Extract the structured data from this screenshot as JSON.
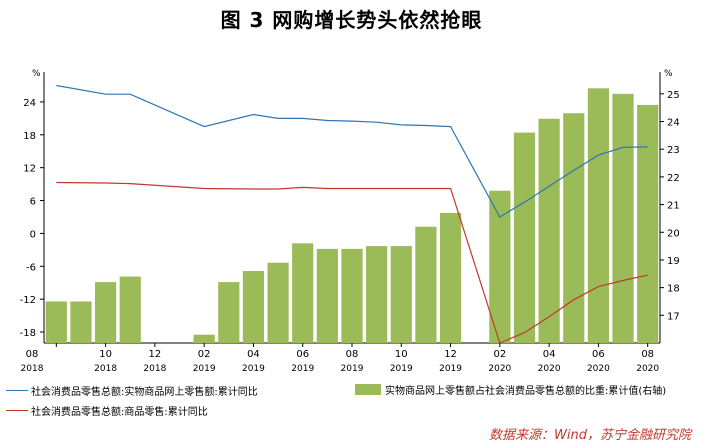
{
  "title": "图 3  网购增长势头依然抢眼",
  "source": "数据来源：Wind，苏宁金融研究院",
  "chart_data": {
    "type": "bar+line",
    "left_axis": {
      "unit": "%",
      "ticks": [
        -18,
        -12,
        -6,
        0,
        6,
        12,
        18,
        24
      ],
      "range": [
        -20,
        28
      ]
    },
    "right_axis": {
      "unit": "%",
      "ticks": [
        17,
        18,
        19,
        20,
        21,
        22,
        23,
        24,
        25
      ],
      "range": [
        16,
        25.5
      ]
    },
    "categories": [
      "2018-08",
      "2018-09",
      "2018-10",
      "2018-11",
      "2018-12",
      "2019-01",
      "2019-02",
      "2019-03",
      "2019-04",
      "2019-05",
      "2019-06",
      "2019-07",
      "2019-08",
      "2019-09",
      "2019-10",
      "2019-11",
      "2019-12",
      "2020-01",
      "2020-02",
      "2020-03",
      "2020-04",
      "2020-05",
      "2020-06",
      "2020-07",
      "2020-08"
    ],
    "x_tick_labels": [
      {
        "month": "08",
        "year": "2018"
      },
      {
        "month": "10",
        "year": "2018"
      },
      {
        "month": "12",
        "year": "2018"
      },
      {
        "month": "02",
        "year": "2019"
      },
      {
        "month": "04",
        "year": "2019"
      },
      {
        "month": "06",
        "year": "2019"
      },
      {
        "month": "08",
        "year": "2019"
      },
      {
        "month": "10",
        "year": "2019"
      },
      {
        "month": "12",
        "year": "2019"
      },
      {
        "month": "02",
        "year": "2020"
      },
      {
        "month": "04",
        "year": "2020"
      },
      {
        "month": "06",
        "year": "2020"
      },
      {
        "month": "08",
        "year": "2020"
      }
    ],
    "series": [
      {
        "name": "社会消费品零售总额:实物商品网上零售额:累计同比",
        "type": "line",
        "axis": "left",
        "color": "#2e75b6",
        "values": [
          27.0,
          null,
          25.4,
          25.4,
          null,
          null,
          19.5,
          null,
          21.7,
          21.0,
          21.0,
          20.6,
          20.5,
          20.3,
          19.8,
          19.7,
          19.5,
          null,
          3.0,
          5.7,
          8.6,
          11.5,
          14.3,
          15.7,
          15.8
        ]
      },
      {
        "name": "社会消费品零售总额:商品零售:累计同比",
        "type": "line",
        "axis": "left",
        "color": "#c0392b",
        "values": [
          9.3,
          null,
          9.2,
          9.1,
          null,
          null,
          8.2,
          null,
          8.1,
          8.1,
          8.4,
          8.2,
          8.2,
          8.2,
          8.2,
          8.2,
          8.2,
          null,
          -20.0,
          -18.1,
          -15.2,
          -12.1,
          -9.7,
          -8.6,
          -7.6
        ]
      },
      {
        "name": "实物商品网上零售额占社会消费品零售总额的比重:累计值(右轴)",
        "type": "bar",
        "axis": "right",
        "color": "#9bbb59",
        "values": [
          17.5,
          17.5,
          18.2,
          18.4,
          null,
          null,
          16.3,
          18.2,
          18.6,
          18.9,
          19.6,
          19.4,
          19.4,
          19.5,
          19.5,
          20.2,
          20.7,
          null,
          21.5,
          23.6,
          24.1,
          24.3,
          25.2,
          25.0,
          24.6
        ]
      }
    ]
  }
}
